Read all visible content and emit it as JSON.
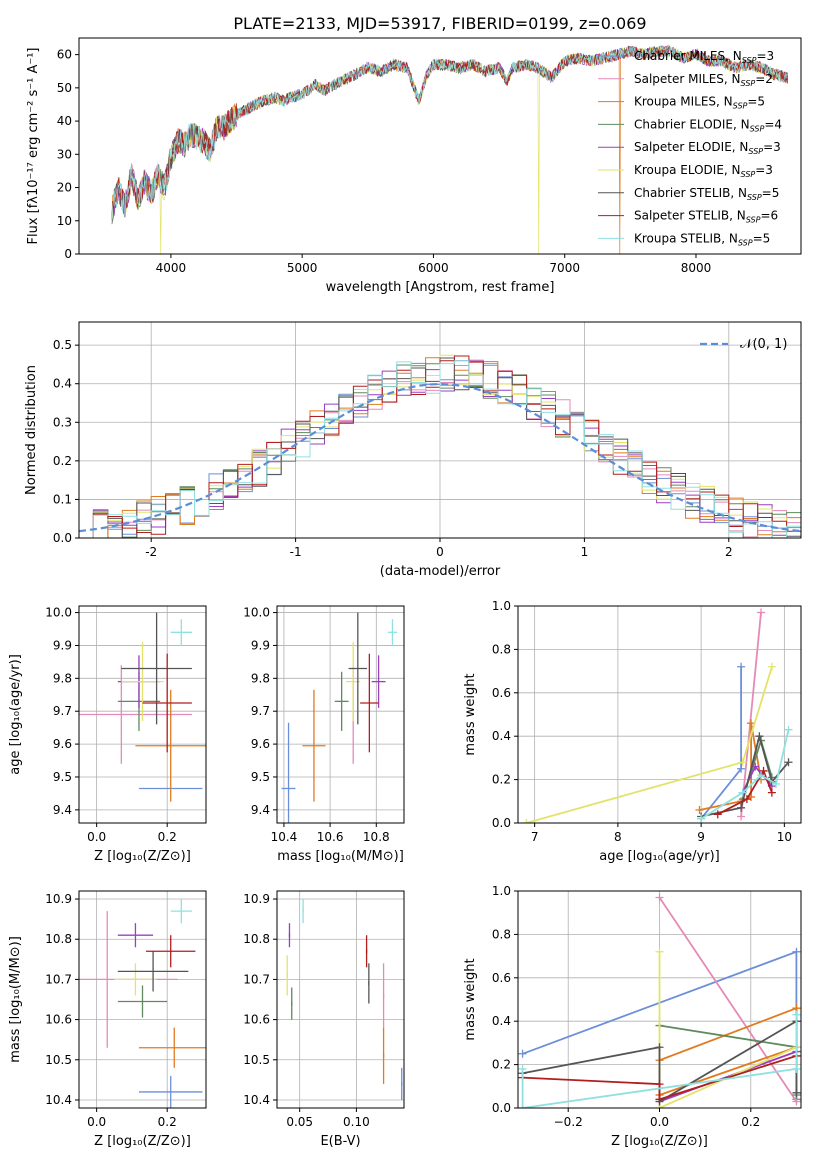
{
  "title": "PLATE=2133, MJD=53917, FIBERID=0199, z=0.069",
  "colors": {
    "Chabrier MILES": "#6b8fd9",
    "Salpeter MILES": "#e58ab8",
    "Kroupa MILES": "#e07b1f",
    "Chabrier ELODIE": "#5f8a5f",
    "Salpeter ELODIE": "#9a3fc0",
    "Kroupa ELODIE": "#e3e36a",
    "Chabrier STELIB": "#555555",
    "Salpeter STELIB": "#b01e1e",
    "Kroupa STELIB": "#8fe0e0",
    "normal": "#5b8dd9"
  },
  "models": [
    {
      "key": "Chabrier MILES",
      "label": "Chabrier MILES, N",
      "sub": "SSP",
      "eq": "=3"
    },
    {
      "key": "Salpeter MILES",
      "label": "Salpeter MILES, N",
      "sub": "SSP",
      "eq": "=2"
    },
    {
      "key": "Kroupa MILES",
      "label": "Kroupa MILES, N",
      "sub": "SSP",
      "eq": "=5"
    },
    {
      "key": "Chabrier ELODIE",
      "label": "Chabrier ELODIE, N",
      "sub": "SSP",
      "eq": "=4"
    },
    {
      "key": "Salpeter ELODIE",
      "label": "Salpeter ELODIE, N",
      "sub": "SSP",
      "eq": "=3"
    },
    {
      "key": "Kroupa ELODIE",
      "label": "Kroupa ELODIE, N",
      "sub": "SSP",
      "eq": "=3"
    },
    {
      "key": "Chabrier STELIB",
      "label": "Chabrier STELIB, N",
      "sub": "SSP",
      "eq": "=5"
    },
    {
      "key": "Salpeter STELIB",
      "label": "Salpeter STELIB, N",
      "sub": "SSP",
      "eq": "=6"
    },
    {
      "key": "Kroupa STELIB",
      "label": "Kroupa STELIB, N",
      "sub": "SSP",
      "eq": "=5"
    }
  ],
  "chart_data": [
    {
      "type": "line",
      "panel": "spectrum",
      "xlabel": "wavelength [Angstrom, rest frame]",
      "ylabel": "Flux [fλ10⁻¹⁷ erg cm⁻² s⁻¹ A⁻¹]",
      "xlim": [
        3300,
        8800
      ],
      "ylim": [
        0,
        65
      ],
      "xticks": [
        4000,
        5000,
        6000,
        7000,
        8000
      ],
      "yticks": [
        0,
        10,
        20,
        30,
        40,
        50,
        60
      ],
      "grid": false,
      "legend": "top-right",
      "x": [
        3550,
        3600,
        3650,
        3700,
        3750,
        3800,
        3850,
        3900,
        3950,
        4000,
        4050,
        4100,
        4150,
        4200,
        4250,
        4300,
        4350,
        4400,
        4450,
        4500,
        4600,
        4700,
        4800,
        4862,
        4900,
        5000,
        5100,
        5175,
        5200,
        5300,
        5400,
        5500,
        5600,
        5700,
        5800,
        5890,
        5950,
        6000,
        6100,
        6200,
        6300,
        6400,
        6500,
        6563,
        6600,
        6700,
        6800,
        6900,
        7000,
        7100,
        7200,
        7300,
        7400,
        7500,
        7600,
        7700,
        7800,
        7900,
        8000,
        8100,
        8200,
        8300,
        8400,
        8500,
        8600,
        8700
      ],
      "y": [
        13,
        20,
        14,
        24,
        16,
        22,
        18,
        24,
        20,
        29,
        34,
        33,
        36,
        35,
        34,
        31,
        38,
        38,
        40,
        42,
        44,
        46,
        47,
        46,
        47,
        48,
        51,
        49,
        50,
        52,
        54,
        56,
        55,
        57,
        56,
        46,
        54,
        57,
        57,
        56,
        57,
        55,
        56,
        52,
        56,
        57,
        56,
        53,
        58,
        59,
        58,
        59,
        60,
        61,
        60,
        61,
        61,
        59,
        60,
        58,
        58,
        56,
        57,
        56,
        54,
        53
      ],
      "dropouts": [
        {
          "model": "Kroupa ELODIE",
          "x": 3920
        },
        {
          "model": "Kroupa ELODIE",
          "x": 6800
        },
        {
          "model": "Kroupa MILES",
          "x": 7420
        }
      ]
    },
    {
      "type": "line",
      "panel": "residual-histogram",
      "xlabel": "(data-model)/error",
      "ylabel": "Normed distribution",
      "xlim": [
        -2.5,
        2.5
      ],
      "ylim": [
        0,
        0.56
      ],
      "xticks": [
        -2,
        -1,
        0,
        1,
        2
      ],
      "yticks": [
        0.0,
        0.1,
        0.2,
        0.3,
        0.4,
        0.5
      ],
      "grid": true,
      "legend": "top-right",
      "normal_label": "𝒩(0, 1)"
    },
    {
      "type": "scatter",
      "panel": "age-vs-Z",
      "xlabel": "Z [log₁₀(Z/Z⊙)]",
      "ylabel": "age  [log₁₀(age/yr)]",
      "xlim": [
        -0.05,
        0.31
      ],
      "ylim": [
        9.36,
        10.02
      ],
      "xticks": [
        0.0,
        0.2
      ],
      "yticks": [
        9.4,
        9.5,
        9.6,
        9.7,
        9.8,
        9.9,
        10.0
      ],
      "grid": true,
      "points": [
        {
          "model": "Chabrier MILES",
          "x": 0.21,
          "y": 9.465,
          "xerr": 0.09,
          "yerr": 0.0
        },
        {
          "model": "Salpeter MILES",
          "x": 0.07,
          "y": 9.69,
          "xerr": 0.2,
          "yerr": 0.15
        },
        {
          "model": "Kroupa MILES",
          "x": 0.21,
          "y": 9.595,
          "xerr": 0.1,
          "yerr": 0.17
        },
        {
          "model": "Chabrier ELODIE",
          "x": 0.12,
          "y": 9.73,
          "xerr": 0.06,
          "yerr": 0.09
        },
        {
          "model": "Salpeter ELODIE",
          "x": 0.12,
          "y": 9.79,
          "xerr": 0.06,
          "yerr": 0.08
        },
        {
          "model": "Kroupa ELODIE",
          "x": 0.13,
          "y": 9.79,
          "xerr": 0.06,
          "yerr": 0.12
        },
        {
          "model": "Chabrier STELIB",
          "x": 0.17,
          "y": 9.83,
          "xerr": 0.1,
          "yerr": 0.17
        },
        {
          "model": "Salpeter STELIB",
          "x": 0.2,
          "y": 9.725,
          "xerr": 0.07,
          "yerr": 0.15
        },
        {
          "model": "Kroupa STELIB",
          "x": 0.24,
          "y": 9.94,
          "xerr": 0.03,
          "yerr": 0.04
        }
      ]
    },
    {
      "type": "scatter",
      "panel": "age-vs-mass",
      "xlabel": "mass [log₁₀(M/M⊙)]",
      "ylabel": "",
      "xlim": [
        10.37,
        10.92
      ],
      "ylim": [
        9.36,
        10.02
      ],
      "xticks": [
        10.4,
        10.6,
        10.8
      ],
      "yticks": [
        9.4,
        9.5,
        9.6,
        9.7,
        9.8,
        9.9,
        10.0
      ],
      "grid": true,
      "points": [
        {
          "model": "Chabrier MILES",
          "x": 10.42,
          "y": 9.465,
          "xerr": 0.03,
          "yerr": 0.2
        },
        {
          "model": "Salpeter MILES",
          "x": 10.7,
          "y": 9.69,
          "xerr": 0.0,
          "yerr": 0.15
        },
        {
          "model": "Kroupa MILES",
          "x": 10.53,
          "y": 9.595,
          "xerr": 0.05,
          "yerr": 0.17
        },
        {
          "model": "Chabrier ELODIE",
          "x": 10.65,
          "y": 9.73,
          "xerr": 0.03,
          "yerr": 0.09
        },
        {
          "model": "Salpeter ELODIE",
          "x": 10.81,
          "y": 9.79,
          "xerr": 0.03,
          "yerr": 0.08
        },
        {
          "model": "Kroupa ELODIE",
          "x": 10.7,
          "y": 9.79,
          "xerr": 0.03,
          "yerr": 0.12
        },
        {
          "model": "Chabrier STELIB",
          "x": 10.72,
          "y": 9.83,
          "xerr": 0.04,
          "yerr": 0.17
        },
        {
          "model": "Salpeter STELIB",
          "x": 10.77,
          "y": 9.725,
          "xerr": 0.04,
          "yerr": 0.15
        },
        {
          "model": "Kroupa STELIB",
          "x": 10.87,
          "y": 9.94,
          "xerr": 0.02,
          "yerr": 0.04
        }
      ]
    },
    {
      "type": "line",
      "panel": "mass-weight-vs-age",
      "xlabel": "age  [log₁₀(age/yr)]",
      "ylabel": "mass weight",
      "xlim": [
        6.8,
        10.2
      ],
      "ylim": [
        0,
        1
      ],
      "xticks": [
        7,
        8,
        9,
        10
      ],
      "yticks": [
        0.0,
        0.2,
        0.4,
        0.6,
        0.8,
        1.0
      ],
      "grid": true,
      "series": [
        {
          "model": "Chabrier MILES",
          "x": [
            9.0,
            9.48,
            9.48
          ],
          "y": [
            0.02,
            0.25,
            0.72
          ]
        },
        {
          "model": "Salpeter MILES",
          "x": [
            9.48,
            9.72
          ],
          "y": [
            0.03,
            0.97
          ]
        },
        {
          "model": "Kroupa MILES",
          "x": [
            8.98,
            9.48,
            9.6,
            9.6,
            9.72
          ],
          "y": [
            0.06,
            0.1,
            0.12,
            0.46,
            0.2
          ]
        },
        {
          "model": "Chabrier ELODIE",
          "x": [
            9.5,
            9.72,
            9.85
          ],
          "y": [
            0.11,
            0.38,
            0.21
          ]
        },
        {
          "model": "Salpeter ELODIE",
          "x": [
            9.5,
            9.65,
            9.85
          ],
          "y": [
            0.14,
            0.26,
            0.17
          ]
        },
        {
          "model": "Kroupa ELODIE",
          "x": [
            6.9,
            9.5,
            9.85
          ],
          "y": [
            0.0,
            0.28,
            0.72
          ]
        },
        {
          "model": "Chabrier STELIB",
          "x": [
            9.0,
            9.48,
            9.7,
            9.85,
            10.05
          ],
          "y": [
            0.03,
            0.07,
            0.4,
            0.19,
            0.28
          ]
        },
        {
          "model": "Salpeter STELIB",
          "x": [
            9.2,
            9.55,
            9.75,
            9.85
          ],
          "y": [
            0.04,
            0.11,
            0.24,
            0.14
          ]
        },
        {
          "model": "Kroupa STELIB",
          "x": [
            9.0,
            9.5,
            9.72,
            9.9,
            10.05
          ],
          "y": [
            0.02,
            0.14,
            0.22,
            0.18,
            0.43
          ]
        }
      ]
    },
    {
      "type": "scatter",
      "panel": "mass-vs-Z",
      "xlabel": "Z [log₁₀(Z/Z⊙)]",
      "ylabel": "mass [log₁₀(M/M⊙)]",
      "xlim": [
        -0.05,
        0.31
      ],
      "ylim": [
        10.38,
        10.92
      ],
      "xticks": [
        0.0,
        0.2
      ],
      "yticks": [
        10.4,
        10.5,
        10.6,
        10.7,
        10.8,
        10.9
      ],
      "grid": true,
      "points": [
        {
          "model": "Chabrier MILES",
          "x": 0.21,
          "y": 10.42,
          "xerr": 0.09,
          "yerr": 0.04
        },
        {
          "model": "Salpeter MILES",
          "x": 0.03,
          "y": 10.7,
          "xerr": 0.2,
          "yerr": 0.17
        },
        {
          "model": "Kroupa MILES",
          "x": 0.22,
          "y": 10.53,
          "xerr": 0.1,
          "yerr": 0.05
        },
        {
          "model": "Chabrier ELODIE",
          "x": 0.13,
          "y": 10.645,
          "xerr": 0.07,
          "yerr": 0.04
        },
        {
          "model": "Salpeter ELODIE",
          "x": 0.11,
          "y": 10.81,
          "xerr": 0.05,
          "yerr": 0.03
        },
        {
          "model": "Kroupa ELODIE",
          "x": 0.11,
          "y": 10.7,
          "xerr": 0.06,
          "yerr": 0.04
        },
        {
          "model": "Chabrier STELIB",
          "x": 0.16,
          "y": 10.72,
          "xerr": 0.1,
          "yerr": 0.05
        },
        {
          "model": "Salpeter STELIB",
          "x": 0.21,
          "y": 10.77,
          "xerr": 0.07,
          "yerr": 0.04
        },
        {
          "model": "Kroupa STELIB",
          "x": 0.24,
          "y": 10.87,
          "xerr": 0.03,
          "yerr": 0.03
        }
      ]
    },
    {
      "type": "scatter",
      "panel": "mass-vs-EBV",
      "xlabel": "E(B-V)",
      "ylabel": "",
      "xlim": [
        0.03,
        0.142
      ],
      "ylim": [
        10.38,
        10.92
      ],
      "xticks": [
        0.05,
        0.1
      ],
      "yticks": [
        10.4,
        10.5,
        10.6,
        10.7,
        10.8,
        10.9
      ],
      "grid": true,
      "points": [
        {
          "model": "Chabrier MILES",
          "x": 0.14,
          "y": 10.44,
          "xerr": 0,
          "yerr": 0.04
        },
        {
          "model": "Salpeter MILES",
          "x": 0.124,
          "y": 10.66,
          "xerr": 0,
          "yerr": 0.08
        },
        {
          "model": "Kroupa MILES",
          "x": 0.124,
          "y": 10.51,
          "xerr": 0,
          "yerr": 0.07
        },
        {
          "model": "Chabrier ELODIE",
          "x": 0.043,
          "y": 10.64,
          "xerr": 0,
          "yerr": 0.04
        },
        {
          "model": "Salpeter ELODIE",
          "x": 0.041,
          "y": 10.81,
          "xerr": 0,
          "yerr": 0.03
        },
        {
          "model": "Kroupa ELODIE",
          "x": 0.039,
          "y": 10.71,
          "xerr": 0,
          "yerr": 0.05
        },
        {
          "model": "Chabrier STELIB",
          "x": 0.111,
          "y": 10.69,
          "xerr": 0,
          "yerr": 0.05
        },
        {
          "model": "Salpeter STELIB",
          "x": 0.109,
          "y": 10.77,
          "xerr": 0,
          "yerr": 0.04
        },
        {
          "model": "Kroupa STELIB",
          "x": 0.053,
          "y": 10.87,
          "xerr": 0,
          "yerr": 0.03
        }
      ]
    },
    {
      "type": "line",
      "panel": "mass-weight-vs-Z",
      "xlabel": "Z [log₁₀(Z/Z⊙)]",
      "ylabel": "mass weight",
      "xlim": [
        -0.31,
        0.31
      ],
      "ylim": [
        0,
        1
      ],
      "xticks": [
        -0.2,
        0.0,
        0.2
      ],
      "yticks": [
        0.0,
        0.2,
        0.4,
        0.6,
        0.8,
        1.0
      ],
      "grid": true,
      "series": [
        {
          "model": "Chabrier MILES",
          "x": [
            -0.3,
            0.3,
            0.3
          ],
          "y": [
            0.25,
            0.72,
            0.04
          ]
        },
        {
          "model": "Salpeter MILES",
          "x": [
            0.0,
            0.3
          ],
          "y": [
            0.97,
            0.03
          ]
        },
        {
          "model": "Kroupa MILES",
          "x": [
            0.0,
            0.0,
            0.3,
            0.3,
            0.0
          ],
          "y": [
            0.06,
            0.22,
            0.46,
            0.28,
            0.06
          ]
        },
        {
          "model": "Chabrier ELODIE",
          "x": [
            0.0,
            0.3,
            0.3
          ],
          "y": [
            0.38,
            0.28,
            0.06
          ]
        },
        {
          "model": "Salpeter ELODIE",
          "x": [
            0.0,
            0.3
          ],
          "y": [
            0.03,
            0.26
          ]
        },
        {
          "model": "Kroupa ELODIE",
          "x": [
            0.0,
            0.0,
            0.3
          ],
          "y": [
            0.72,
            0.0,
            0.28
          ]
        },
        {
          "model": "Chabrier STELIB",
          "x": [
            -0.3,
            0.0,
            0.0,
            0.3,
            0.3
          ],
          "y": [
            0.16,
            0.28,
            0.03,
            0.4,
            0.07
          ]
        },
        {
          "model": "Salpeter STELIB",
          "x": [
            -0.3,
            0.0,
            0.0,
            0.3
          ],
          "y": [
            0.14,
            0.11,
            0.04,
            0.24
          ]
        },
        {
          "model": "Kroupa STELIB",
          "x": [
            -0.3,
            -0.3,
            0.3,
            0.3
          ],
          "y": [
            0.18,
            0.0,
            0.18,
            0.43
          ]
        }
      ]
    }
  ]
}
